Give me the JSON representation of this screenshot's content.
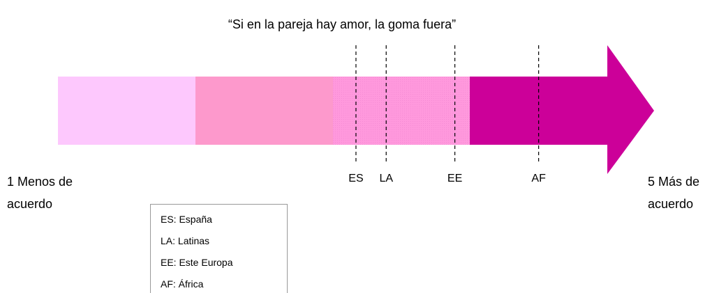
{
  "title": "“Si en la pareja hay amor, la goma fuera”",
  "min_label": "1 Menos de acuerdo",
  "max_label": "5 Más de acuerdo",
  "xlim": [
    1,
    5
  ],
  "markers": [
    {
      "label": "ES",
      "value": 3.17
    },
    {
      "label": "LA",
      "value": 3.39
    },
    {
      "label": "EE",
      "value": 3.89
    },
    {
      "label": "AF",
      "value": 4.5
    }
  ],
  "legend": [
    "ES: España",
    "LA: Latinas",
    "EE: Este Europa",
    "AF: África"
  ]
}
